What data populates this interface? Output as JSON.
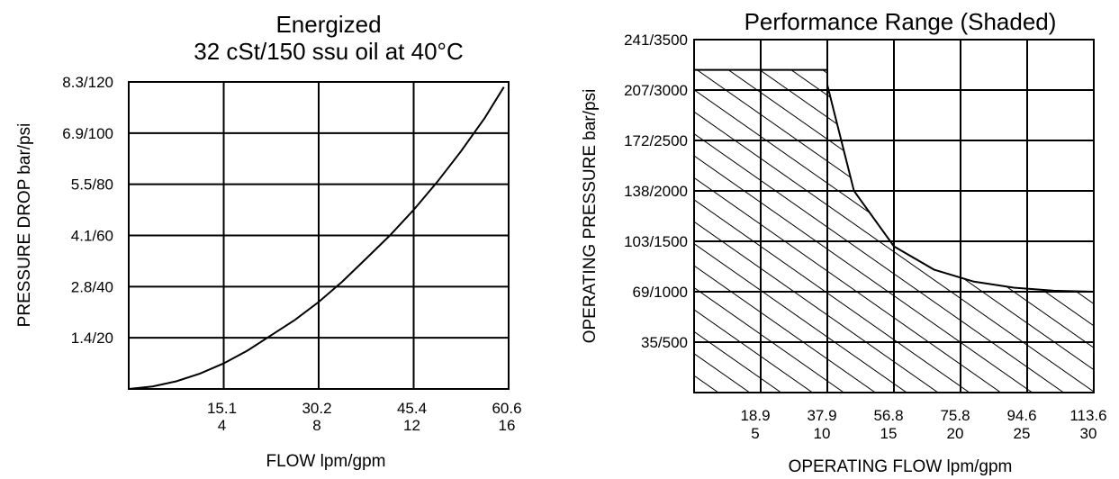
{
  "chart_data": [
    {
      "type": "line",
      "title": "Energized",
      "subtitle": "32 cSt/150 ssu oil at 40°C",
      "xlabel": "FLOW lpm/gpm",
      "ylabel": "PRESSURE DROP bar/psi",
      "x_ticks": [
        {
          "top": "15.1",
          "bottom": "4"
        },
        {
          "top": "30.2",
          "bottom": "8"
        },
        {
          "top": "45.4",
          "bottom": "12"
        },
        {
          "top": "60.6",
          "bottom": "16"
        }
      ],
      "y_ticks": [
        "1.4/20",
        "2.8/40",
        "4.1/60",
        "5.5/80",
        "6.9/100",
        "8.3/120"
      ],
      "xlim": [
        0,
        16
      ],
      "ylim": [
        0,
        120
      ],
      "x_unit": "gpm",
      "y_unit": "psi",
      "grid": true,
      "series": [
        {
          "x": [
            0,
            1,
            2,
            3,
            4,
            5,
            6,
            7,
            8,
            9,
            10,
            11,
            12,
            13,
            14,
            15,
            15.8
          ],
          "y": [
            0,
            1,
            3,
            6,
            10,
            15,
            21,
            27,
            34,
            42,
            51,
            60,
            70,
            81,
            93,
            106,
            118
          ]
        }
      ]
    },
    {
      "type": "area",
      "title": "Performance Range (Shaded)",
      "xlabel": "OPERATING FLOW lpm/gpm",
      "ylabel": "OPERATING PRESSURE bar/psi",
      "x_ticks": [
        {
          "top": "18.9",
          "bottom": "5"
        },
        {
          "top": "37.9",
          "bottom": "10"
        },
        {
          "top": "56.8",
          "bottom": "15"
        },
        {
          "top": "75.8",
          "bottom": "20"
        },
        {
          "top": "94.6",
          "bottom": "25"
        },
        {
          "top": "113.6",
          "bottom": "30"
        }
      ],
      "y_ticks": [
        "35/500",
        "69/1000",
        "103/1500",
        "138/2000",
        "172/2500",
        "207/3000",
        "241/3500"
      ],
      "xlim": [
        0,
        30
      ],
      "ylim": [
        0,
        3500
      ],
      "x_unit": "gpm",
      "y_unit": "psi",
      "grid": true,
      "shading": "hatched",
      "series": [
        {
          "x": [
            0,
            10,
            10,
            12,
            15,
            18,
            21,
            24,
            27,
            30
          ],
          "y": [
            3200,
            3200,
            3050,
            2000,
            1450,
            1220,
            1100,
            1040,
            1010,
            1000
          ]
        }
      ]
    }
  ]
}
